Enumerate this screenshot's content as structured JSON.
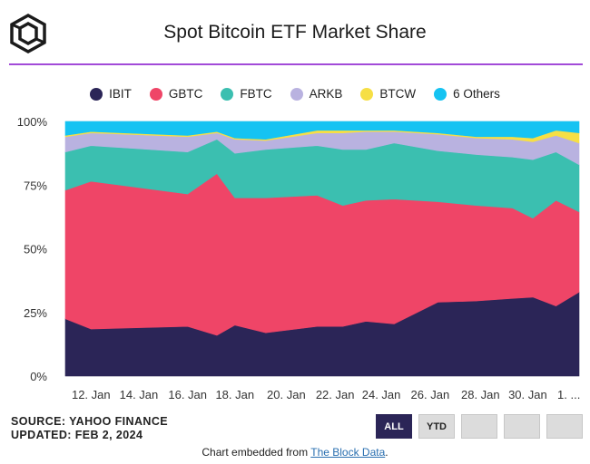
{
  "header": {
    "title": "Spot Bitcoin ETF Market Share",
    "logo_icon": "the-block-cube-logo"
  },
  "legend": [
    {
      "label": "IBIT",
      "color": "#2b2557"
    },
    {
      "label": "GBTC",
      "color": "#ef4567"
    },
    {
      "label": "FBTC",
      "color": "#3bbfb0"
    },
    {
      "label": "ARKB",
      "color": "#b9b2e0"
    },
    {
      "label": "BTCW",
      "color": "#f6df45"
    },
    {
      "label": "6 Others",
      "color": "#15c3f2"
    }
  ],
  "footer": {
    "source": "SOURCE: YAHOO FINANCE",
    "updated": "UPDATED: FEB 2, 2024",
    "buttons": [
      "ALL",
      "YTD",
      "",
      "",
      ""
    ],
    "embed_prefix": "Chart embedded from",
    "embed_link": "The Block Data",
    "embed_suffix": "."
  },
  "chart_data": {
    "type": "area",
    "stacked": true,
    "title": "Spot Bitcoin ETF Market Share",
    "ylim": [
      0,
      100
    ],
    "y_ticks": [
      "0%",
      "25%",
      "50%",
      "75%",
      "100%"
    ],
    "x_ticks": [
      "12. Jan",
      "14. Jan",
      "16. Jan",
      "18. Jan",
      "20. Jan",
      "22. Jan",
      "24. Jan",
      "26. Jan",
      "28. Jan",
      "30. Jan",
      "1. ..."
    ],
    "x": [
      "11. Jan",
      "12. Jan",
      "16. Jan",
      "17. Jan",
      "18. Jan",
      "19. Jan",
      "22. Jan",
      "23. Jan",
      "24. Jan",
      "25. Jan",
      "26. Jan",
      "29. Jan",
      "30. Jan",
      "31. Jan",
      "1. Feb",
      "2. Feb"
    ],
    "series": [
      {
        "name": "IBIT",
        "color": "#2b2557",
        "values": [
          22.5,
          18.5,
          19.5,
          16,
          20,
          17,
          19.5,
          19.5,
          21.5,
          20.5,
          29,
          29.5,
          30.5,
          31,
          27.5,
          33
        ]
      },
      {
        "name": "GBTC",
        "color": "#ef4567",
        "values": [
          50.5,
          58,
          52,
          63.5,
          50,
          53,
          51.5,
          47.5,
          47.5,
          49,
          39.5,
          37.5,
          35.5,
          31,
          41.5,
          31.5
        ]
      },
      {
        "name": "FBTC",
        "color": "#3bbfb0",
        "values": [
          15,
          14,
          16.5,
          13.5,
          17.5,
          19,
          19.5,
          22,
          20,
          22,
          20,
          20,
          20,
          23,
          19,
          18.5
        ]
      },
      {
        "name": "ARKB",
        "color": "#b9b2e0",
        "values": [
          6,
          5,
          6,
          2.5,
          5.5,
          3.5,
          5,
          6.5,
          7,
          4.5,
          6.5,
          6.5,
          7,
          7,
          6.5,
          8.5
        ]
      },
      {
        "name": "BTCW",
        "color": "#f6df45",
        "values": [
          0.5,
          0.5,
          0.5,
          0.5,
          0.5,
          0.5,
          1,
          1,
          0.5,
          0.5,
          0.5,
          0.5,
          1,
          1.5,
          2,
          4
        ]
      },
      {
        "name": "6 Others",
        "color": "#15c3f2",
        "values": [
          5.5,
          4,
          5.5,
          4,
          6.5,
          7,
          3.5,
          3.5,
          3.5,
          3.5,
          4.5,
          6,
          6,
          6.5,
          3.5,
          4.5
        ]
      }
    ]
  }
}
